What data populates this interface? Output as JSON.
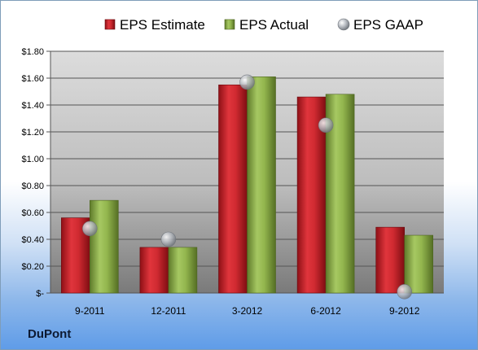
{
  "chart_data": {
    "type": "bar",
    "title": "",
    "company": "DuPont",
    "categories": [
      "9-2011",
      "12-2011",
      "3-2012",
      "6-2012",
      "9-2012"
    ],
    "series": [
      {
        "name": "EPS Estimate",
        "type": "bar",
        "color": "#c8232b",
        "values": [
          0.56,
          0.34,
          1.55,
          1.46,
          0.49
        ]
      },
      {
        "name": "EPS Actual",
        "type": "bar",
        "color": "#8db04a",
        "values": [
          0.69,
          0.34,
          1.61,
          1.48,
          0.43
        ]
      },
      {
        "name": "EPS GAAP",
        "type": "marker",
        "color": "#a8adb5",
        "values": [
          0.48,
          0.4,
          1.57,
          1.25,
          0.01
        ]
      }
    ],
    "yticks": [
      0,
      0.2,
      0.4,
      0.6,
      0.8,
      1.0,
      1.2,
      1.4,
      1.6,
      1.8
    ],
    "ytick_labels": [
      "$-",
      "$0.20",
      "$0.40",
      "$0.60",
      "$0.80",
      "$1.00",
      "$1.20",
      "$1.40",
      "$1.60",
      "$1.80"
    ],
    "ylim": [
      0,
      1.8
    ],
    "grid": true,
    "legend_position": "top"
  }
}
